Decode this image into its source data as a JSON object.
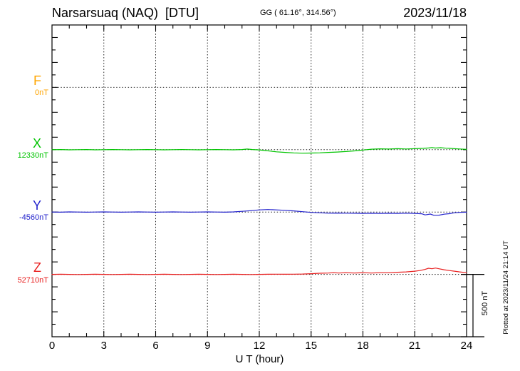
{
  "header": {
    "title": "Narsarsuaq (NAQ)  [DTU]",
    "coordinates": "GG ( 61.16°, 314.56°)",
    "date": "2023/11/18"
  },
  "footer": {
    "plotted_at": "Plotted at 2023/11/24 21:14 UT"
  },
  "chart_data": {
    "type": "line",
    "title": "Narsarsuaq (NAQ) [DTU] magnetogram",
    "xlabel": "U T (hour)",
    "x_range_hours": [
      0,
      24
    ],
    "x_tick_labels": [
      0,
      3,
      6,
      9,
      12,
      15,
      18,
      21,
      24
    ],
    "x_minor_tick_hours": 1,
    "y_minor_tick_nT": 100,
    "baseline_separation_nT": 500,
    "scale_bar": {
      "label": "500 nT",
      "nT": 500
    },
    "grid": "dotted vertical line every 3 hours; dotted horizontal line at each channel baseline",
    "legend_position": "left margin, one colored label per channel",
    "series": [
      {
        "channel": "F",
        "color": "#FFA500",
        "baseline_value_label": "0nT",
        "baseline_nT": 0,
        "points_hour_nT": []
      },
      {
        "channel": "X",
        "color": "#00C400",
        "baseline_value_label": "12330nT",
        "baseline_nT": 12330,
        "points_hour_nT": [
          [
            0,
            0
          ],
          [
            0.5,
            1
          ],
          [
            1,
            -1
          ],
          [
            1.5,
            0
          ],
          [
            2,
            1
          ],
          [
            2.5,
            -1
          ],
          [
            3,
            0
          ],
          [
            3.5,
            1
          ],
          [
            4,
            0
          ],
          [
            4.5,
            -1
          ],
          [
            5,
            0
          ],
          [
            5.5,
            1
          ],
          [
            6,
            0
          ],
          [
            6.5,
            -1
          ],
          [
            7,
            0
          ],
          [
            7.5,
            1
          ],
          [
            8,
            0
          ],
          [
            8.5,
            -1
          ],
          [
            9,
            0
          ],
          [
            9.5,
            1
          ],
          [
            10,
            0
          ],
          [
            10.5,
            -1
          ],
          [
            11,
            1
          ],
          [
            11.3,
            5
          ],
          [
            11.6,
            1
          ],
          [
            12,
            -2
          ],
          [
            12.5,
            -9
          ],
          [
            13,
            -17
          ],
          [
            13.5,
            -22
          ],
          [
            14,
            -26
          ],
          [
            14.5,
            -28
          ],
          [
            15,
            -27
          ],
          [
            15.5,
            -25
          ],
          [
            16,
            -22
          ],
          [
            16.5,
            -19
          ],
          [
            17,
            -15
          ],
          [
            17.5,
            -10
          ],
          [
            18,
            -3
          ],
          [
            18.5,
            4
          ],
          [
            19,
            7
          ],
          [
            19.5,
            5
          ],
          [
            20,
            8
          ],
          [
            20.5,
            6
          ],
          [
            21,
            8
          ],
          [
            21.5,
            11
          ],
          [
            21.8,
            14
          ],
          [
            22,
            17
          ],
          [
            22.2,
            13
          ],
          [
            22.5,
            16
          ],
          [
            22.8,
            12
          ],
          [
            23,
            11
          ],
          [
            23.3,
            8
          ],
          [
            23.6,
            6
          ],
          [
            24,
            3
          ]
        ]
      },
      {
        "channel": "Y",
        "color": "#2222CC",
        "baseline_value_label": "-4560nT",
        "baseline_nT": -4560,
        "points_hour_nT": [
          [
            0,
            0
          ],
          [
            0.5,
            -1
          ],
          [
            1,
            1
          ],
          [
            1.5,
            0
          ],
          [
            2,
            -1
          ],
          [
            2.5,
            0
          ],
          [
            3,
            1
          ],
          [
            3.5,
            0
          ],
          [
            4,
            -1
          ],
          [
            4.5,
            0
          ],
          [
            5,
            1
          ],
          [
            5.5,
            0
          ],
          [
            6,
            -1
          ],
          [
            6.5,
            0
          ],
          [
            7,
            1
          ],
          [
            7.5,
            0
          ],
          [
            8,
            -1
          ],
          [
            8.5,
            0
          ],
          [
            9,
            1
          ],
          [
            9.5,
            0
          ],
          [
            10,
            -1
          ],
          [
            10.5,
            1
          ],
          [
            11,
            6
          ],
          [
            11.5,
            11
          ],
          [
            12,
            17
          ],
          [
            12.5,
            20
          ],
          [
            13,
            17
          ],
          [
            13.5,
            14
          ],
          [
            14,
            9
          ],
          [
            14.5,
            3
          ],
          [
            15,
            -3
          ],
          [
            15.5,
            -6
          ],
          [
            16,
            -9
          ],
          [
            16.5,
            -8
          ],
          [
            17,
            -9
          ],
          [
            17.5,
            -10
          ],
          [
            18,
            -11
          ],
          [
            18.5,
            -10
          ],
          [
            19,
            -11
          ],
          [
            19.5,
            -10
          ],
          [
            20,
            -11
          ],
          [
            20.5,
            -9
          ],
          [
            21,
            -11
          ],
          [
            21.4,
            -14
          ],
          [
            21.6,
            -23
          ],
          [
            21.9,
            -16
          ],
          [
            22.1,
            -26
          ],
          [
            22.4,
            -25
          ],
          [
            22.7,
            -17
          ],
          [
            23,
            -13
          ],
          [
            23.3,
            -6
          ],
          [
            23.6,
            -3
          ],
          [
            24,
            -1
          ]
        ]
      },
      {
        "channel": "Z",
        "color": "#E82020",
        "baseline_value_label": "52710nT",
        "baseline_nT": 52710,
        "points_hour_nT": [
          [
            0,
            0
          ],
          [
            0.5,
            1
          ],
          [
            1,
            0
          ],
          [
            1.5,
            -1
          ],
          [
            2,
            0
          ],
          [
            2.5,
            1
          ],
          [
            3,
            0
          ],
          [
            3.5,
            -1
          ],
          [
            4,
            0
          ],
          [
            4.5,
            1
          ],
          [
            5,
            0
          ],
          [
            5.5,
            -1
          ],
          [
            6,
            0
          ],
          [
            6.5,
            1
          ],
          [
            7,
            0
          ],
          [
            7.5,
            -1
          ],
          [
            8,
            0
          ],
          [
            8.5,
            1
          ],
          [
            9,
            0
          ],
          [
            9.5,
            -1
          ],
          [
            10,
            0
          ],
          [
            10.5,
            1
          ],
          [
            11,
            0
          ],
          [
            11.5,
            -1
          ],
          [
            12,
            0
          ],
          [
            12.5,
            1
          ],
          [
            13,
            2
          ],
          [
            13.5,
            1
          ],
          [
            14,
            2
          ],
          [
            14.5,
            3
          ],
          [
            15,
            6
          ],
          [
            15.5,
            9
          ],
          [
            16,
            11
          ],
          [
            16.3,
            14
          ],
          [
            16.6,
            11
          ],
          [
            17,
            14
          ],
          [
            17.5,
            11
          ],
          [
            18,
            14
          ],
          [
            18.5,
            11
          ],
          [
            19,
            14
          ],
          [
            19.5,
            14
          ],
          [
            20,
            17
          ],
          [
            20.5,
            20
          ],
          [
            21,
            26
          ],
          [
            21.3,
            31
          ],
          [
            21.6,
            40
          ],
          [
            21.8,
            49
          ],
          [
            22,
            45
          ],
          [
            22.2,
            51
          ],
          [
            22.4,
            45
          ],
          [
            22.7,
            37
          ],
          [
            23,
            31
          ],
          [
            23.3,
            26
          ],
          [
            23.6,
            20
          ],
          [
            24,
            14
          ]
        ]
      }
    ]
  }
}
